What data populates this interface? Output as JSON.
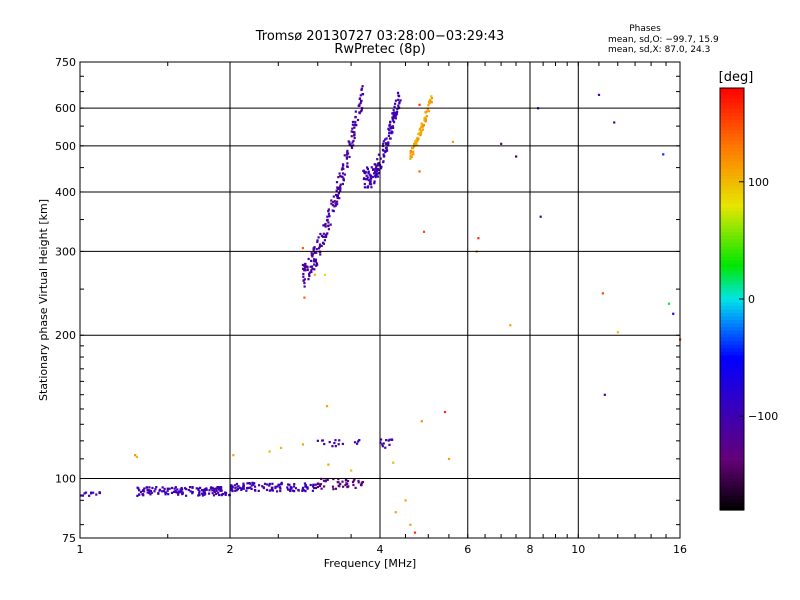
{
  "chart_data": {
    "type": "scatter",
    "title": "Tromsø 20130727 03:28:00−03:29:43",
    "subtitle": "RwPretec (8p)",
    "stats": {
      "heading": "Phases",
      "line1": "mean, sd,O: −99.7, 15.9",
      "line2": "mean, sd,X:  87.0, 24.3"
    },
    "xlabel": "Frequency [MHz]",
    "ylabel": "Stationary phase Virtual Height [km]",
    "x_scale": "log",
    "y_scale": "log",
    "xlim": [
      1,
      16
    ],
    "ylim": [
      75,
      750
    ],
    "x_ticks": [
      1,
      2,
      4,
      6,
      8,
      10,
      16
    ],
    "x_tick_labels": [
      "1",
      "2",
      "4",
      "6",
      "8",
      "10",
      "16"
    ],
    "y_ticks": [
      75,
      100,
      200,
      300,
      400,
      500,
      600,
      750
    ],
    "y_tick_labels": [
      "75",
      "100",
      "200",
      "300",
      "400",
      "500",
      "600",
      "750"
    ],
    "grid": true,
    "colorbar": {
      "label": "[deg]",
      "range": [
        -180,
        180
      ],
      "ticks": [
        100,
        0,
        -100
      ],
      "tick_labels": [
        "100",
        "0",
        "−100"
      ],
      "colormap": "rainbow: black → purple → blue → cyan → green → yellow → red"
    },
    "traces": [
      {
        "x_range": [
          1.0,
          1.1
        ],
        "y_range": [
          92,
          94
        ],
        "phase": -105,
        "n": 12
      },
      {
        "x_range": [
          1.3,
          2.0
        ],
        "y_range": [
          92,
          96
        ],
        "phase": -100,
        "n": 140
      },
      {
        "x_range": [
          2.0,
          3.0
        ],
        "y_range": [
          94,
          98
        ],
        "phase": -100,
        "n": 110
      },
      {
        "x_range": [
          3.0,
          3.7
        ],
        "y_range": [
          95,
          100
        ],
        "phase": -130,
        "n": 45
      },
      {
        "x_range": [
          3.0,
          3.7
        ],
        "y_range": [
          117,
          121
        ],
        "phase": -105,
        "n": 16
      },
      {
        "x_range": [
          3.95,
          4.25
        ],
        "y_range": [
          116,
          121
        ],
        "phase": -105,
        "n": 12
      },
      {
        "x_range": [
          2.8,
          3.7
        ],
        "y_range": [
          265,
          650
        ],
        "phase": -110,
        "n": 200
      },
      {
        "x_range": [
          3.7,
          4.4
        ],
        "y_range": [
          430,
          650
        ],
        "phase": -100,
        "n": 150
      },
      {
        "x_range": [
          4.6,
          5.1
        ],
        "y_range": [
          480,
          640
        ],
        "phase": 110,
        "n": 70
      }
    ],
    "points": [
      {
        "x": 1.29,
        "y": 112,
        "phase": 120
      },
      {
        "x": 1.3,
        "y": 111,
        "phase": 100
      },
      {
        "x": 2.03,
        "y": 112,
        "phase": 110
      },
      {
        "x": 2.4,
        "y": 114,
        "phase": 100
      },
      {
        "x": 2.53,
        "y": 116,
        "phase": 100
      },
      {
        "x": 2.8,
        "y": 118,
        "phase": 110
      },
      {
        "x": 2.8,
        "y": 305,
        "phase": 140
      },
      {
        "x": 2.82,
        "y": 240,
        "phase": 140
      },
      {
        "x": 2.96,
        "y": 268,
        "phase": 100
      },
      {
        "x": 3.1,
        "y": 268,
        "phase": 80
      },
      {
        "x": 3.13,
        "y": 142,
        "phase": 110
      },
      {
        "x": 3.15,
        "y": 107,
        "phase": 110
      },
      {
        "x": 3.5,
        "y": 104,
        "phase": 100
      },
      {
        "x": 4.25,
        "y": 108,
        "phase": 100
      },
      {
        "x": 4.3,
        "y": 85,
        "phase": 110
      },
      {
        "x": 4.5,
        "y": 90,
        "phase": 110
      },
      {
        "x": 4.6,
        "y": 80,
        "phase": 110
      },
      {
        "x": 4.7,
        "y": 77,
        "phase": 160
      },
      {
        "x": 4.8,
        "y": 610,
        "phase": 160
      },
      {
        "x": 4.8,
        "y": 442,
        "phase": 140
      },
      {
        "x": 4.85,
        "y": 132,
        "phase": 120
      },
      {
        "x": 4.9,
        "y": 330,
        "phase": 150
      },
      {
        "x": 5.4,
        "y": 138,
        "phase": 160
      },
      {
        "x": 5.5,
        "y": 110,
        "phase": 110
      },
      {
        "x": 5.6,
        "y": 510,
        "phase": 110
      },
      {
        "x": 6.25,
        "y": 300,
        "phase": 130
      },
      {
        "x": 6.3,
        "y": 320,
        "phase": 160
      },
      {
        "x": 7.0,
        "y": 505,
        "phase": -130
      },
      {
        "x": 7.3,
        "y": 210,
        "phase": 110
      },
      {
        "x": 7.5,
        "y": 475,
        "phase": -150
      },
      {
        "x": 8.3,
        "y": 600,
        "phase": -70
      },
      {
        "x": 8.4,
        "y": 355,
        "phase": -100
      },
      {
        "x": 11.0,
        "y": 640,
        "phase": -100
      },
      {
        "x": 11.2,
        "y": 245,
        "phase": 150
      },
      {
        "x": 11.3,
        "y": 150,
        "phase": -120
      },
      {
        "x": 11.8,
        "y": 560,
        "phase": -110
      },
      {
        "x": 12.0,
        "y": 203,
        "phase": 100
      },
      {
        "x": 14.8,
        "y": 480,
        "phase": -40
      },
      {
        "x": 15.2,
        "y": 233,
        "phase": 20
      },
      {
        "x": 15.5,
        "y": 222,
        "phase": -70
      },
      {
        "x": 16.0,
        "y": 196,
        "phase": 160
      }
    ]
  }
}
